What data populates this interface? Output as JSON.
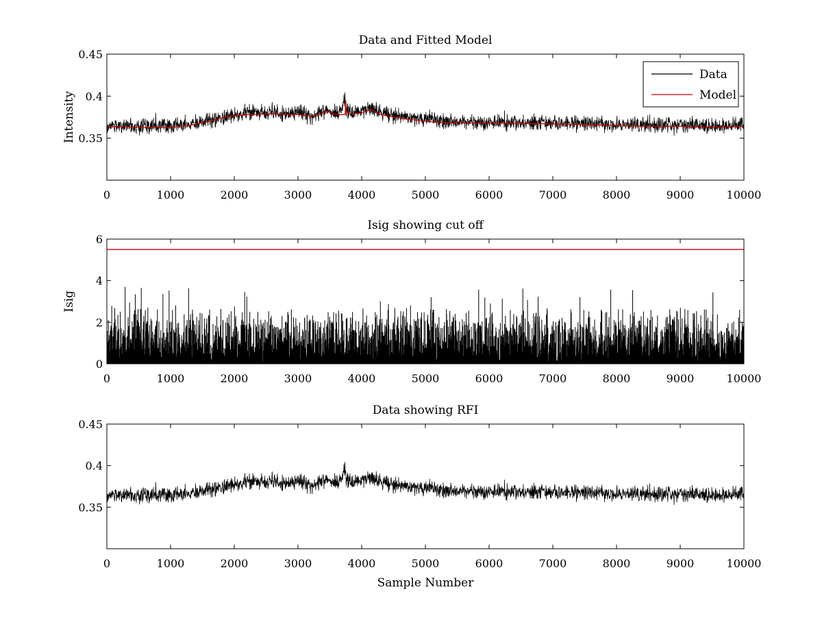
{
  "chart_data": [
    {
      "type": "line",
      "title": "Data and Fitted Model",
      "xlabel": "",
      "ylabel": "Intensity",
      "xlim": [
        0,
        10000
      ],
      "ylim": [
        0.3,
        0.45
      ],
      "xticks": [
        0,
        1000,
        2000,
        3000,
        4000,
        5000,
        6000,
        7000,
        8000,
        9000,
        10000
      ],
      "yticks": [
        0.35,
        0.4,
        0.45
      ],
      "yticklabels": [
        "0.35",
        "0.4",
        "0.45"
      ],
      "grid": false,
      "legend": {
        "placement": "top-right",
        "entries": [
          "Data",
          "Model"
        ]
      },
      "series": [
        {
          "name": "Data",
          "color": "#000000",
          "style": "noisy",
          "noise_amplitude": 0.0045,
          "baseline": {
            "x": [
              0,
              500,
              1000,
              1300,
              1600,
              1900,
              2200,
              2600,
              3000,
              3200,
              3350,
              3450,
              3550,
              3650,
              3740,
              3760,
              3850,
              4000,
              4150,
              4300,
              4500,
              5000,
              5500,
              6000,
              7000,
              7500,
              8000,
              8500,
              9000,
              9500,
              10000
            ],
            "y": [
              0.365,
              0.364,
              0.364,
              0.366,
              0.371,
              0.377,
              0.38,
              0.381,
              0.379,
              0.377,
              0.381,
              0.384,
              0.381,
              0.378,
              0.398,
              0.381,
              0.381,
              0.382,
              0.386,
              0.38,
              0.377,
              0.372,
              0.369,
              0.369,
              0.368,
              0.368,
              0.366,
              0.366,
              0.365,
              0.364,
              0.366
            ]
          }
        },
        {
          "name": "Model",
          "color": "#cc0000",
          "x": [
            0,
            500,
            1000,
            1300,
            1600,
            1900,
            2200,
            2600,
            3000,
            3200,
            3350,
            3450,
            3550,
            3650,
            3740,
            3750,
            3760,
            3850,
            4000,
            4150,
            4300,
            4500,
            5000,
            5450,
            5500,
            5550,
            6000,
            7000,
            7500,
            8000,
            8500,
            9000,
            9500,
            10000
          ],
          "y": [
            0.364,
            0.363,
            0.363,
            0.365,
            0.37,
            0.376,
            0.378,
            0.379,
            0.378,
            0.376,
            0.379,
            0.382,
            0.379,
            0.378,
            0.378,
            0.395,
            0.38,
            0.379,
            0.38,
            0.384,
            0.378,
            0.375,
            0.37,
            0.368,
            0.37,
            0.368,
            0.368,
            0.367,
            0.366,
            0.365,
            0.364,
            0.364,
            0.363,
            0.364
          ]
        }
      ]
    },
    {
      "type": "line",
      "title": "Isig showing cut off",
      "xlabel": "",
      "ylabel": "Isig",
      "xlim": [
        0,
        10000
      ],
      "ylim": [
        0,
        6
      ],
      "xticks": [
        0,
        1000,
        2000,
        3000,
        4000,
        5000,
        6000,
        7000,
        8000,
        9000,
        10000
      ],
      "yticks": [
        0,
        2,
        4,
        6
      ],
      "yticklabels": [
        "0",
        "2",
        "4",
        "6"
      ],
      "grid": false,
      "series": [
        {
          "color": "#000000",
          "style": "spiky",
          "typical_max": 2.2,
          "peak_max": 3.7
        },
        {
          "color": "#cc0000",
          "style": "cutoff",
          "x": [
            0,
            10000
          ],
          "y": [
            5.5,
            5.5
          ]
        }
      ]
    },
    {
      "type": "line",
      "title": "Data showing RFI",
      "xlabel": "Sample Number",
      "ylabel": "",
      "xlim": [
        0,
        10000
      ],
      "ylim": [
        0.3,
        0.45
      ],
      "xticks": [
        0,
        1000,
        2000,
        3000,
        4000,
        5000,
        6000,
        7000,
        8000,
        9000,
        10000
      ],
      "yticks": [
        0.35,
        0.4,
        0.45
      ],
      "yticklabels": [
        "0.35",
        "0.4",
        "0.45"
      ],
      "grid": false,
      "series": [
        {
          "color": "#000000",
          "style": "noisy",
          "noise_amplitude": 0.0045,
          "baseline": {
            "x": [
              0,
              500,
              1000,
              1300,
              1600,
              1900,
              2200,
              2600,
              3000,
              3200,
              3350,
              3450,
              3550,
              3650,
              3740,
              3760,
              3850,
              4000,
              4150,
              4300,
              4500,
              5000,
              5500,
              6000,
              7000,
              7500,
              8000,
              8500,
              9000,
              9500,
              10000
            ],
            "y": [
              0.365,
              0.364,
              0.364,
              0.366,
              0.371,
              0.377,
              0.38,
              0.381,
              0.379,
              0.377,
              0.381,
              0.384,
              0.381,
              0.378,
              0.398,
              0.381,
              0.381,
              0.382,
              0.386,
              0.38,
              0.377,
              0.372,
              0.369,
              0.369,
              0.368,
              0.368,
              0.366,
              0.366,
              0.365,
              0.364,
              0.366
            ]
          }
        }
      ]
    }
  ]
}
